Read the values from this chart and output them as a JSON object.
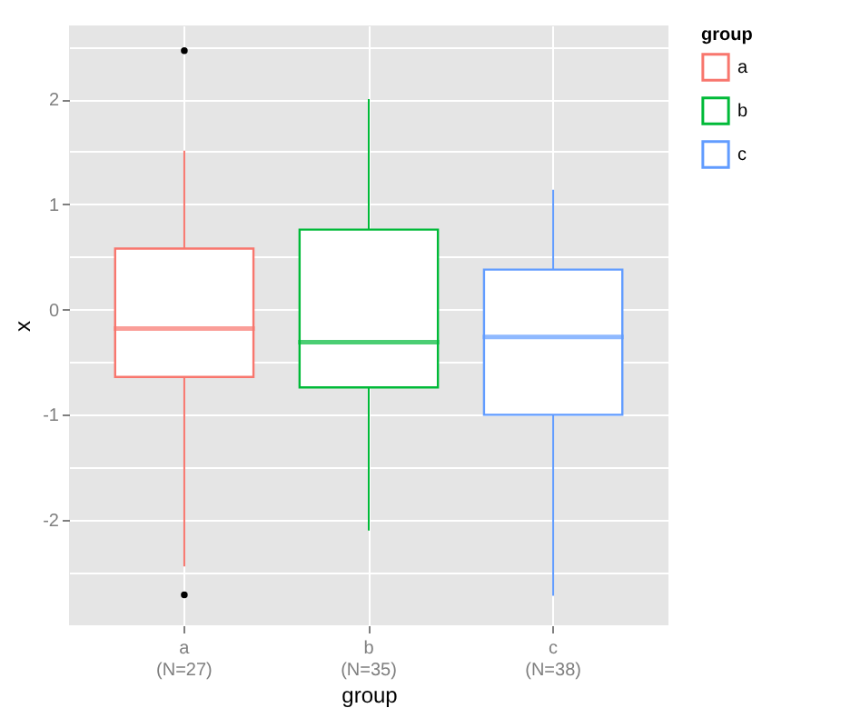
{
  "chart_data": {
    "type": "box",
    "categories": [
      "a\n(N=27)",
      "b\n(N=35)",
      "c\n(N=38)"
    ],
    "series": [
      {
        "name": "a",
        "color": "#f8766d",
        "boxes": [
          {
            "low": -2.44,
            "q1": -0.64,
            "median": -0.18,
            "q3": 0.58,
            "high": 1.51,
            "outliers": [
              2.46,
              -2.71
            ]
          },
          null,
          null
        ]
      },
      {
        "name": "b",
        "color": "#00ba38",
        "boxes": [
          null,
          {
            "low": -2.1,
            "q1": -0.74,
            "median": -0.31,
            "q3": 0.76,
            "high": 2.0
          },
          null
        ]
      },
      {
        "name": "c",
        "color": "#619cff",
        "boxes": [
          null,
          null,
          {
            "low": -2.72,
            "q1": -1.0,
            "median": -0.26,
            "q3": 0.38,
            "high": 1.14
          }
        ]
      }
    ],
    "xlabel": "group",
    "ylabel": "x",
    "legend_title": "group",
    "ylim": [
      -3.0,
      2.7
    ],
    "yticks": [
      {
        "value": -2.5,
        "label": null
      },
      -2,
      {
        "value": -1.5,
        "label": null
      },
      -1,
      {
        "value": -0.5,
        "label": null
      },
      0,
      {
        "value": 0.5,
        "label": null
      },
      1,
      {
        "value": 1.5,
        "label": null
      },
      2,
      {
        "value": 2.5,
        "label": null
      }
    ],
    "grid": true,
    "legend": "right"
  }
}
